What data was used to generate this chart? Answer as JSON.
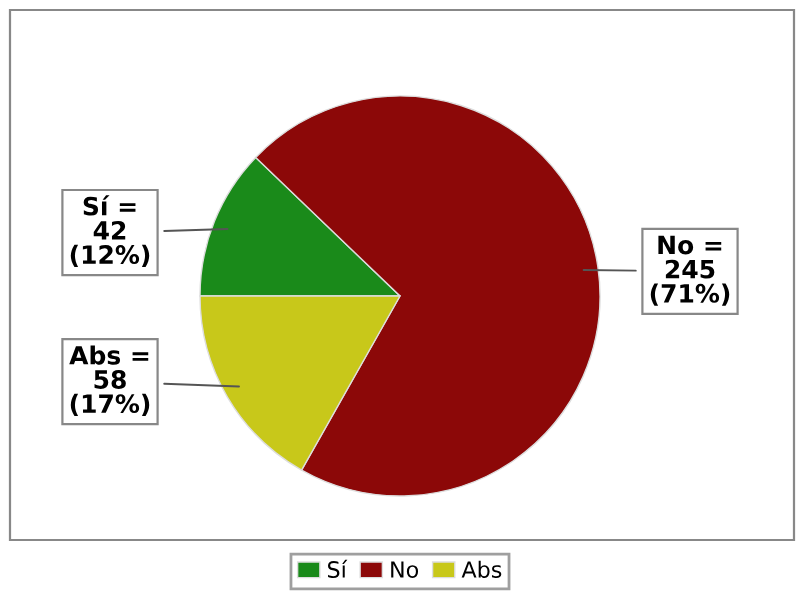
{
  "chart_data": {
    "type": "pie",
    "categories": [
      "Sí",
      "No",
      "Abs"
    ],
    "values": [
      42,
      245,
      58
    ],
    "colors": [
      "#1a8a1a",
      "#8c0808",
      "#c8c81a"
    ],
    "value_labels": [
      "Sí =\n42\n(12%)",
      "No =\n245\n(71%)",
      "Abs =\n58\n(17%)"
    ],
    "legend": "bottom"
  }
}
